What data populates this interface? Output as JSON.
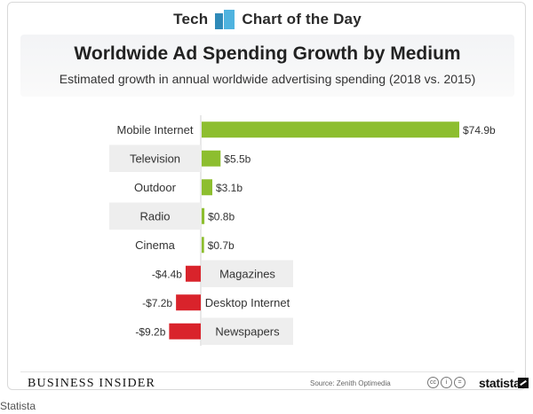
{
  "header": {
    "brand_left": "Tech",
    "brand_right": "Chart of the Day",
    "brand_icon": "bar-chart-icon"
  },
  "chart_data": {
    "type": "bar",
    "orientation": "horizontal",
    "title": "Worldwide Ad Spending Growth by Medium",
    "subtitle": "Estimated growth in annual worldwide advertising spending (2018 vs. 2015)",
    "unit": "billion USD",
    "categories": [
      "Mobile Internet",
      "Television",
      "Outdoor",
      "Radio",
      "Cinema",
      "Magazines",
      "Desktop Internet",
      "Newspapers"
    ],
    "values": [
      74.9,
      5.5,
      3.1,
      0.8,
      0.7,
      -4.4,
      -7.2,
      -9.2
    ],
    "value_labels": [
      "$74.9b",
      "$5.5b",
      "$3.1b",
      "$0.8b",
      "$0.7b",
      "-$4.4b",
      "-$7.2b",
      "-$9.2b"
    ],
    "colors": {
      "positive": "#8dbe2f",
      "negative": "#d9232b",
      "band": "#eeeeee"
    },
    "grid": false,
    "legend": "none"
  },
  "footer": {
    "publisher": "Business Insider",
    "source": "Source: Zenith Optimedia",
    "license_icons": [
      "cc-icon",
      "attribution-icon",
      "equals-icon"
    ],
    "statista": "statista"
  },
  "caption": "Statista"
}
